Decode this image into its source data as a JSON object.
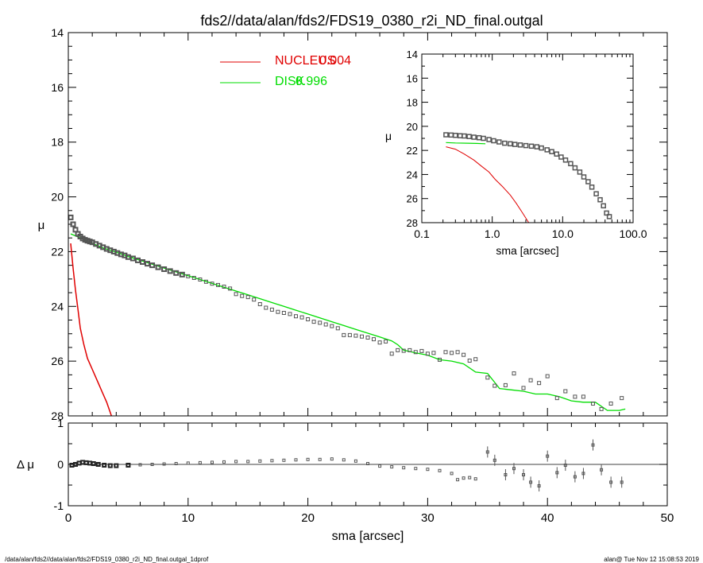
{
  "title": "fds2//data/alan/fds2/FDS19_0380_r2i_ND_final.outgal",
  "footer": {
    "left": "/data/alan/fds2//data/alan/fds2/FDS19_0380_r2i_ND_final.outgal_1dprof",
    "right": "alan@  Tue Nov 12 15:08:53 2019"
  },
  "colors": {
    "nucleus": "#e00000",
    "disk": "#00dd00",
    "data": "#555555",
    "axis": "#000000"
  },
  "legend": [
    {
      "name": "NUCLEUS",
      "value": "0.004",
      "color": "#e00000"
    },
    {
      "name": "DISK",
      "value": "0.996",
      "color": "#00dd00"
    }
  ],
  "chart_data": [
    {
      "type": "scatter",
      "panel": "main",
      "title": "fds2//data/alan/fds2/FDS19_0380_r2i_ND_final.outgal",
      "xlabel": "sma [arcsec]",
      "ylabel": "μ",
      "xlim": [
        0,
        50
      ],
      "ylim": [
        28,
        14
      ],
      "xticks": [
        "0",
        "10",
        "20",
        "30",
        "40",
        "50"
      ],
      "yticks": [
        "14",
        "16",
        "18",
        "20",
        "22",
        "24",
        "26",
        "28"
      ],
      "series": [
        {
          "name": "data",
          "marker": "square",
          "x": [
            0.2,
            0.4,
            0.6,
            0.8,
            1.0,
            1.2,
            1.4,
            1.6,
            1.8,
            2.0,
            2.3,
            2.6,
            2.9,
            3.2,
            3.5,
            3.8,
            4.1,
            4.4,
            4.7,
            5.0,
            5.4,
            5.8,
            6.2,
            6.6,
            7.0,
            7.5,
            8.0,
            8.5,
            9.0,
            9.5,
            10.0,
            10.5,
            11.0,
            11.5,
            12.0,
            12.5,
            13.0,
            13.5,
            14.0,
            14.5,
            15.0,
            15.5,
            16.0,
            16.5,
            17.0,
            17.5,
            18.0,
            18.5,
            19.0,
            19.5,
            20.0,
            20.5,
            21.0,
            21.5,
            22.0,
            22.5,
            23.0,
            23.5,
            24.0,
            24.5,
            25.0,
            25.5,
            26.0,
            26.5,
            27.0,
            27.5,
            28.0,
            28.5,
            29.0,
            29.5,
            30.0,
            30.5,
            31.0,
            31.5,
            32.0,
            32.5,
            33.0,
            33.5,
            34.0,
            35.0,
            35.6,
            36.5,
            37.2,
            38.0,
            38.6,
            39.3,
            40.0,
            40.8,
            41.5,
            42.3,
            43.0,
            43.8,
            44.5,
            45.3,
            46.2
          ],
          "y": [
            20.75,
            21.0,
            21.2,
            21.35,
            21.45,
            21.52,
            21.57,
            21.6,
            21.63,
            21.66,
            21.72,
            21.78,
            21.84,
            21.9,
            21.95,
            22.0,
            22.05,
            22.1,
            22.14,
            22.2,
            22.25,
            22.32,
            22.38,
            22.44,
            22.5,
            22.57,
            22.64,
            22.71,
            22.78,
            22.84,
            22.9,
            22.96,
            23.02,
            23.1,
            23.17,
            23.22,
            23.28,
            23.35,
            23.55,
            23.62,
            23.66,
            23.75,
            23.92,
            24.05,
            24.12,
            24.2,
            24.24,
            24.28,
            24.36,
            24.4,
            24.47,
            24.56,
            24.6,
            24.66,
            24.72,
            24.8,
            25.05,
            25.05,
            25.07,
            25.1,
            25.14,
            25.2,
            25.32,
            25.28,
            25.73,
            25.6,
            25.62,
            25.6,
            25.67,
            25.63,
            25.73,
            25.7,
            25.95,
            25.67,
            25.7,
            25.67,
            25.77,
            25.98,
            25.93,
            26.6,
            26.9,
            26.88,
            26.45,
            26.98,
            26.7,
            26.8,
            26.55,
            27.35,
            27.1,
            27.3,
            27.3,
            27.55,
            27.75,
            27.55,
            27.35
          ]
        },
        {
          "name": "NUCLEUS",
          "x": [
            0.2,
            0.4,
            0.6,
            0.8,
            1.0,
            1.3,
            1.6,
            2.0,
            2.4,
            2.8,
            3.2,
            3.6
          ],
          "y": [
            21.7,
            22.6,
            23.4,
            24.1,
            24.8,
            25.4,
            25.9,
            26.3,
            26.7,
            27.1,
            27.5,
            28.0
          ]
        },
        {
          "name": "DISK",
          "x": [
            0.2,
            1.0,
            2.0,
            3.0,
            4.0,
            5.0,
            6.0,
            7.0,
            8.0,
            9.0,
            10.0,
            11.0,
            12.0,
            13.0,
            14.0,
            15.0,
            16.0,
            17.0,
            18.0,
            19.0,
            20.0,
            21.0,
            22.0,
            23.0,
            24.0,
            25.0,
            26.0,
            27.0,
            27.5,
            28.0,
            29.0,
            30.0,
            31.0,
            32.0,
            33.0,
            34.0,
            35.0,
            36.0,
            37.0,
            38.0,
            39.0,
            40.0,
            41.0,
            42.0,
            43.0,
            44.0,
            45.0,
            46.0,
            46.5
          ],
          "y": [
            21.35,
            21.5,
            21.7,
            21.88,
            22.02,
            22.18,
            22.32,
            22.46,
            22.6,
            22.74,
            22.88,
            23.02,
            23.16,
            23.3,
            23.44,
            23.58,
            23.72,
            23.86,
            24.0,
            24.14,
            24.28,
            24.42,
            24.56,
            24.7,
            24.84,
            24.98,
            25.12,
            25.26,
            25.4,
            25.6,
            25.7,
            25.78,
            25.95,
            26.0,
            26.1,
            26.4,
            26.45,
            27.0,
            27.05,
            27.1,
            27.2,
            27.2,
            27.3,
            27.45,
            27.5,
            27.5,
            27.8,
            27.8,
            27.75
          ]
        }
      ]
    },
    {
      "type": "scatter",
      "panel": "residual",
      "xlabel": "sma [arcsec]",
      "ylabel": "Δ μ",
      "xlim": [
        0,
        50
      ],
      "ylim": [
        -1,
        1
      ],
      "yticks": [
        "1",
        "0",
        "-1"
      ],
      "series": [
        {
          "name": "residual",
          "marker": "square",
          "x": [
            0.3,
            0.6,
            0.9,
            1.2,
            1.5,
            1.8,
            2.1,
            2.5,
            3.0,
            3.5,
            4.0,
            5.0,
            6.0,
            7.0,
            8.0,
            9.0,
            10.0,
            11.0,
            12.0,
            13.0,
            14.0,
            15.0,
            16.0,
            17.0,
            18.0,
            19.0,
            20.0,
            21.0,
            22.0,
            23.0,
            24.0,
            25.0,
            26.0,
            27.0,
            28.0,
            29.0,
            30.0,
            31.0,
            32.0,
            32.5,
            33.0,
            33.5,
            34.0,
            35.0,
            35.6,
            36.5,
            37.2,
            38.0,
            38.6,
            39.3,
            40.0,
            40.8,
            41.5,
            42.3,
            43.0,
            43.8,
            44.5,
            45.3,
            46.2
          ],
          "y": [
            -0.02,
            0.0,
            0.03,
            0.05,
            0.04,
            0.03,
            0.02,
            0.0,
            -0.02,
            -0.03,
            -0.03,
            -0.02,
            -0.01,
            0.0,
            0.01,
            0.02,
            0.03,
            0.04,
            0.05,
            0.06,
            0.07,
            0.07,
            0.08,
            0.09,
            0.1,
            0.11,
            0.12,
            0.12,
            0.13,
            0.11,
            0.08,
            0.02,
            -0.04,
            -0.06,
            -0.08,
            -0.1,
            -0.12,
            -0.15,
            -0.22,
            -0.37,
            -0.33,
            -0.32,
            -0.35,
            0.3,
            0.1,
            -0.25,
            -0.1,
            -0.25,
            -0.43,
            -0.52,
            0.2,
            -0.2,
            -0.02,
            -0.3,
            -0.22,
            0.47,
            -0.13,
            -0.43,
            -0.43
          ]
        }
      ]
    },
    {
      "type": "scatter",
      "panel": "inset",
      "xlabel": "sma [arcsec]",
      "ylabel": "μ",
      "xscale": "log",
      "xlim": [
        0.1,
        100
      ],
      "ylim": [
        28,
        14
      ],
      "xticks": [
        "0.1",
        "1.0",
        "10.0",
        "100.0"
      ],
      "yticks": [
        "14",
        "16",
        "18",
        "20",
        "22",
        "24",
        "26",
        "28"
      ],
      "series": [
        {
          "name": "data",
          "marker": "square",
          "x": [
            0.22,
            0.26,
            0.3,
            0.35,
            0.4,
            0.47,
            0.55,
            0.65,
            0.75,
            0.9,
            1.05,
            1.25,
            1.5,
            1.8,
            2.1,
            2.5,
            3.0,
            3.6,
            4.3,
            5.0,
            6.0,
            7.0,
            8.2,
            9.5,
            11.0,
            13.0,
            15.0,
            17.5,
            20.0,
            23.0,
            26.0,
            30.0,
            34.0,
            38.0,
            42.0,
            46.0
          ],
          "y": [
            20.7,
            20.72,
            20.75,
            20.78,
            20.8,
            20.85,
            20.9,
            20.95,
            21.0,
            21.1,
            21.2,
            21.3,
            21.4,
            21.45,
            21.5,
            21.55,
            21.6,
            21.65,
            21.7,
            21.8,
            21.95,
            22.1,
            22.3,
            22.55,
            22.8,
            23.1,
            23.45,
            23.8,
            24.2,
            24.6,
            25.05,
            25.6,
            26.1,
            26.6,
            27.2,
            27.5
          ]
        },
        {
          "name": "NUCLEUS",
          "x": [
            0.22,
            0.3,
            0.4,
            0.55,
            0.7,
            0.9,
            1.1,
            1.4,
            1.8,
            2.2,
            2.7,
            3.3
          ],
          "y": [
            21.7,
            21.9,
            22.3,
            22.8,
            23.3,
            23.8,
            24.4,
            25.0,
            25.7,
            26.4,
            27.2,
            28.0
          ]
        },
        {
          "name": "DISK",
          "x": [
            0.22,
            0.3,
            0.45,
            0.6,
            0.8
          ],
          "y": [
            21.35,
            21.38,
            21.4,
            21.42,
            21.45
          ]
        }
      ]
    }
  ]
}
